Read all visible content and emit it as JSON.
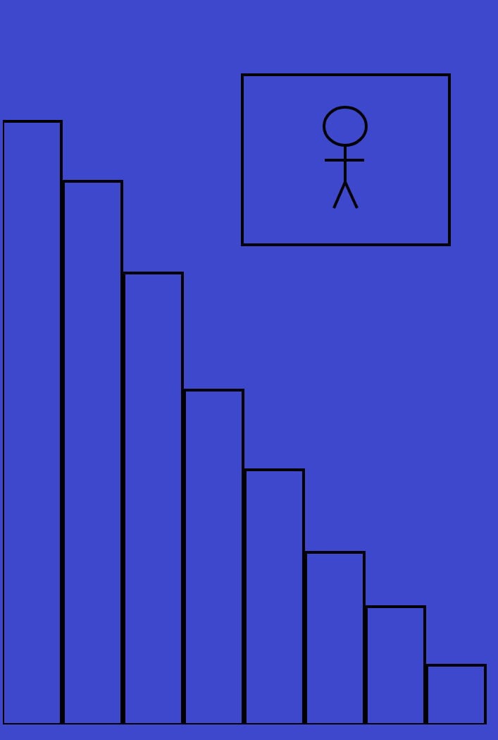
{
  "chart_data": {
    "type": "bar",
    "categories": [
      null,
      null,
      null,
      null,
      null,
      null,
      null,
      null
    ],
    "values": [
      855,
      770,
      640,
      474,
      361,
      244,
      167,
      84
    ],
    "color": "#3d48cc",
    "ylim": [
      0,
      1027
    ],
    "tick_labels": false,
    "grid": false
  }
}
